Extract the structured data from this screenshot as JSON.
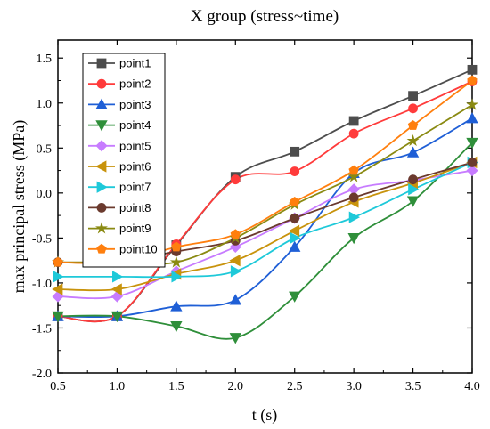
{
  "chart_data": {
    "type": "line",
    "title": "X group (stress~time)",
    "xlabel": "t (s)",
    "ylabel": "max principal stress (MPa)",
    "xlim": [
      0.5,
      4.0
    ],
    "ylim": [
      -2.0,
      1.7
    ],
    "x_ticks": [
      "0.5",
      "1.0",
      "1.5",
      "2.0",
      "2.5",
      "3.0",
      "3.5",
      "4.0"
    ],
    "y_ticks": [
      "-2.0",
      "-1.5",
      "-1.0",
      "-0.5",
      "0.0",
      "0.5",
      "1.0",
      "1.5"
    ],
    "legend_position": "top-left",
    "grid": false,
    "x": [
      0.5,
      1.0,
      1.5,
      2.0,
      2.5,
      3.0,
      3.5,
      4.0
    ],
    "series": [
      {
        "name": "point1",
        "color": "#4d4d4d",
        "marker": "square",
        "values": [
          -1.37,
          -1.37,
          -0.58,
          0.18,
          0.46,
          0.8,
          1.08,
          1.37
        ]
      },
      {
        "name": "point2",
        "color": "#ff3b3b",
        "marker": "circle",
        "values": [
          -1.37,
          -1.37,
          -0.57,
          0.15,
          0.24,
          0.66,
          0.94,
          1.24
        ]
      },
      {
        "name": "point3",
        "color": "#1f5fd6",
        "marker": "triangle-up",
        "values": [
          -1.37,
          -1.37,
          -1.26,
          -1.19,
          -0.6,
          0.22,
          0.45,
          0.83
        ]
      },
      {
        "name": "point4",
        "color": "#2f8f3a",
        "marker": "triangle-down",
        "values": [
          -1.37,
          -1.37,
          -1.48,
          -1.61,
          -1.15,
          -0.5,
          -0.09,
          0.56
        ]
      },
      {
        "name": "point5",
        "color": "#c77cff",
        "marker": "diamond",
        "values": [
          -1.15,
          -1.15,
          -0.87,
          -0.6,
          -0.28,
          0.04,
          0.14,
          0.25
        ]
      },
      {
        "name": "point6",
        "color": "#c8930c",
        "marker": "triangle-left",
        "values": [
          -1.07,
          -1.07,
          -0.9,
          -0.75,
          -0.42,
          -0.1,
          0.11,
          0.34
        ]
      },
      {
        "name": "point7",
        "color": "#1ec9d9",
        "marker": "triangle-right",
        "values": [
          -0.93,
          -0.93,
          -0.93,
          -0.87,
          -0.5,
          -0.27,
          0.04,
          0.34
        ]
      },
      {
        "name": "point8",
        "color": "#6b3a2e",
        "marker": "circle",
        "values": [
          -0.77,
          -0.77,
          -0.65,
          -0.53,
          -0.28,
          -0.05,
          0.15,
          0.34
        ]
      },
      {
        "name": "point9",
        "color": "#8a8a12",
        "marker": "star",
        "values": [
          -0.77,
          -0.77,
          -0.77,
          -0.5,
          -0.13,
          0.18,
          0.58,
          0.98
        ]
      },
      {
        "name": "point10",
        "color": "#ff7f0e",
        "marker": "pentagon",
        "values": [
          -0.77,
          -0.77,
          -0.6,
          -0.46,
          -0.1,
          0.25,
          0.75,
          1.25
        ]
      }
    ]
  }
}
